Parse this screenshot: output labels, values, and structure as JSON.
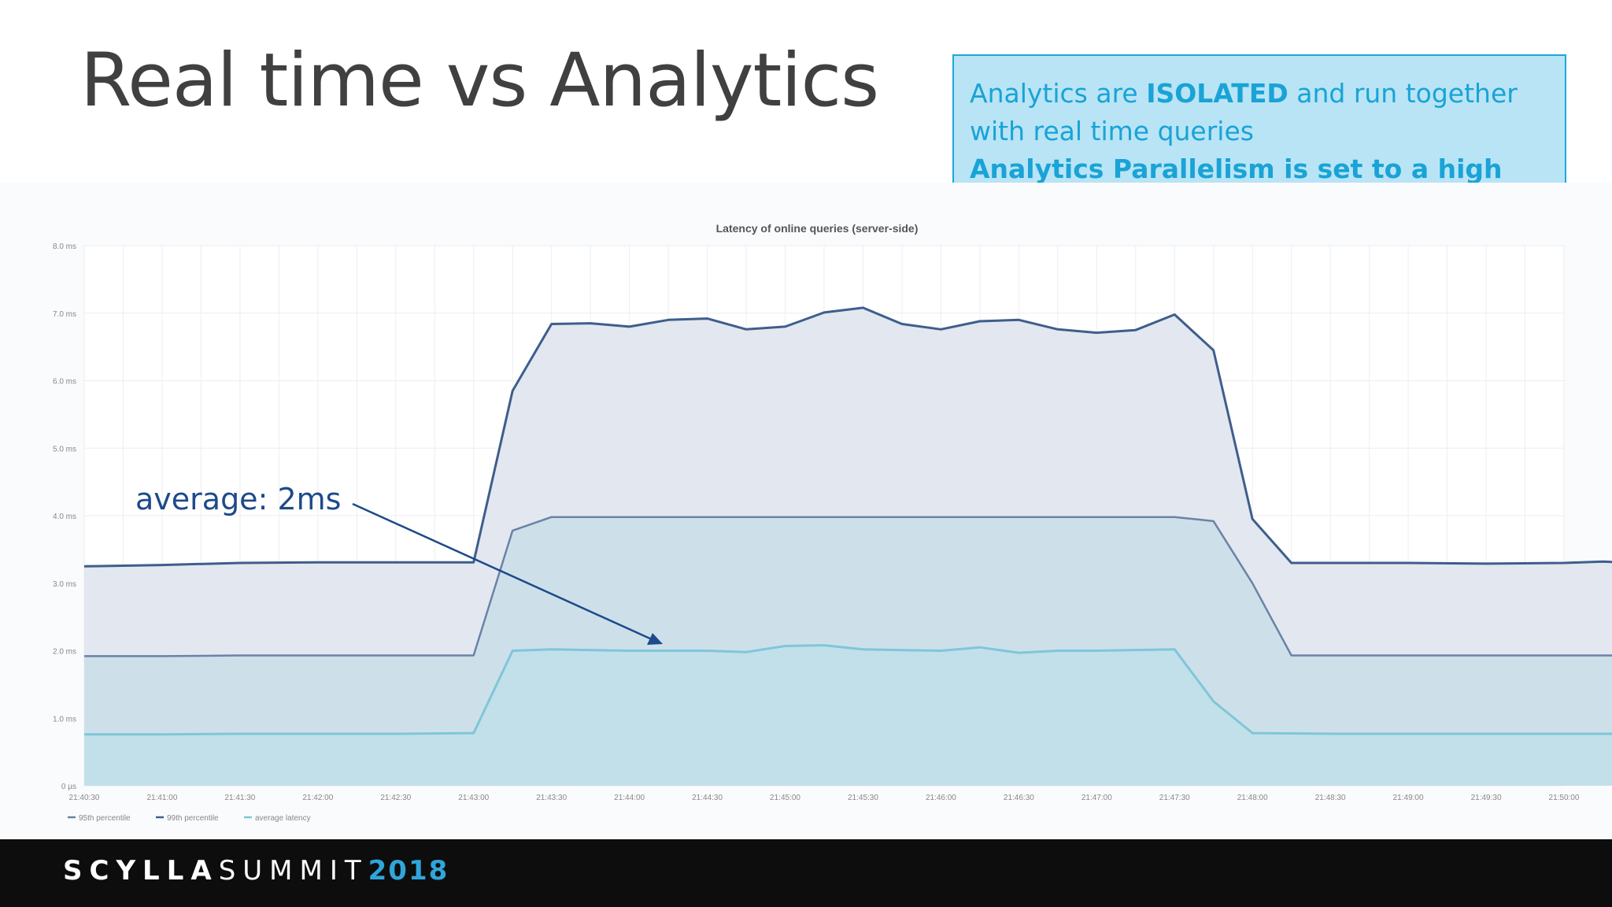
{
  "slide": {
    "title": "Real time vs Analytics",
    "callout": {
      "line1_pre": "Analytics are ",
      "line1_bold": "ISOLATED",
      "line1_post": " and run together",
      "line2": "with real time queries",
      "line3": "Analytics Parallelism is set to a high number."
    },
    "annotation": "average: 2ms",
    "footer": {
      "brand_a": "SCYLLA",
      "brand_b": "SUMMIT",
      "brand_c": "2018"
    }
  },
  "colors": {
    "p95": "#6a83a6",
    "p99": "#3e5e8c",
    "avg": "#7fc6d8",
    "annotation": "#1d4a8a",
    "callout_text": "#19a3d6"
  },
  "chart_data": {
    "type": "area",
    "title": "Latency of online queries (server-side)",
    "y_ticks": [
      "0 µs",
      "1.0 ms",
      "2.0 ms",
      "3.0 ms",
      "4.0 ms",
      "5.0 ms",
      "6.0 ms",
      "7.0 ms",
      "8.0 ms"
    ],
    "ylim": [
      0,
      8
    ],
    "x_ticks": [
      "21:40:30",
      "21:41:00",
      "21:41:30",
      "21:42:00",
      "21:42:30",
      "21:43:00",
      "21:43:30",
      "21:44:00",
      "21:44:30",
      "21:45:00",
      "21:45:30",
      "21:46:00",
      "21:46:30",
      "21:47:00",
      "21:47:30",
      "21:48:00",
      "21:48:30",
      "21:49:00",
      "21:49:30",
      "21:50:00"
    ],
    "grid": true,
    "legend_position": "bottom-left",
    "series": [
      {
        "name": "99th percentile",
        "points": [
          [
            0,
            3.25
          ],
          [
            0.5,
            3.26
          ],
          [
            1,
            3.27
          ],
          [
            2,
            3.3
          ],
          [
            3,
            3.31
          ],
          [
            4,
            3.31
          ],
          [
            4.5,
            3.31
          ],
          [
            5,
            3.31
          ],
          [
            5.5,
            5.85
          ],
          [
            6,
            6.84
          ],
          [
            6.5,
            6.85
          ],
          [
            7,
            6.8
          ],
          [
            7.5,
            6.9
          ],
          [
            8,
            6.92
          ],
          [
            8.5,
            6.76
          ],
          [
            9,
            6.8
          ],
          [
            9.5,
            7.01
          ],
          [
            10,
            7.08
          ],
          [
            10.5,
            6.84
          ],
          [
            11,
            6.76
          ],
          [
            11.5,
            6.88
          ],
          [
            12,
            6.9
          ],
          [
            12.5,
            6.76
          ],
          [
            13,
            6.71
          ],
          [
            13.5,
            6.75
          ],
          [
            14,
            6.98
          ],
          [
            14.5,
            6.45
          ],
          [
            15,
            3.95
          ],
          [
            15.5,
            3.3
          ],
          [
            16,
            3.3
          ],
          [
            17,
            3.3
          ],
          [
            18,
            3.29
          ],
          [
            19,
            3.3
          ],
          [
            19.5,
            3.32
          ],
          [
            20,
            3.3
          ]
        ]
      },
      {
        "name": "95th percentile",
        "points": [
          [
            0,
            1.92
          ],
          [
            1,
            1.92
          ],
          [
            2,
            1.93
          ],
          [
            3,
            1.93
          ],
          [
            4,
            1.93
          ],
          [
            5,
            1.93
          ],
          [
            5.5,
            3.78
          ],
          [
            6,
            3.98
          ],
          [
            7,
            3.98
          ],
          [
            8,
            3.98
          ],
          [
            9,
            3.98
          ],
          [
            10,
            3.98
          ],
          [
            11,
            3.98
          ],
          [
            12,
            3.98
          ],
          [
            13,
            3.98
          ],
          [
            14,
            3.98
          ],
          [
            14.5,
            3.92
          ],
          [
            15,
            3.0
          ],
          [
            15.5,
            1.93
          ],
          [
            16,
            1.93
          ],
          [
            17,
            1.93
          ],
          [
            18,
            1.93
          ],
          [
            19,
            1.93
          ],
          [
            20,
            1.93
          ]
        ]
      },
      {
        "name": "average latency",
        "points": [
          [
            0,
            0.76
          ],
          [
            1,
            0.76
          ],
          [
            2,
            0.77
          ],
          [
            3,
            0.77
          ],
          [
            4,
            0.77
          ],
          [
            5,
            0.78
          ],
          [
            5.5,
            2.0
          ],
          [
            6,
            2.02
          ],
          [
            7,
            2.0
          ],
          [
            8,
            2.0
          ],
          [
            8.5,
            1.98
          ],
          [
            9,
            2.07
          ],
          [
            9.5,
            2.08
          ],
          [
            10,
            2.02
          ],
          [
            11,
            2.0
          ],
          [
            11.5,
            2.05
          ],
          [
            12,
            1.97
          ],
          [
            12.5,
            2.0
          ],
          [
            13,
            2.0
          ],
          [
            14,
            2.02
          ],
          [
            14.5,
            1.25
          ],
          [
            15,
            0.78
          ],
          [
            16,
            0.77
          ],
          [
            17,
            0.77
          ],
          [
            18,
            0.77
          ],
          [
            19,
            0.77
          ],
          [
            20,
            0.77
          ]
        ]
      }
    ]
  }
}
